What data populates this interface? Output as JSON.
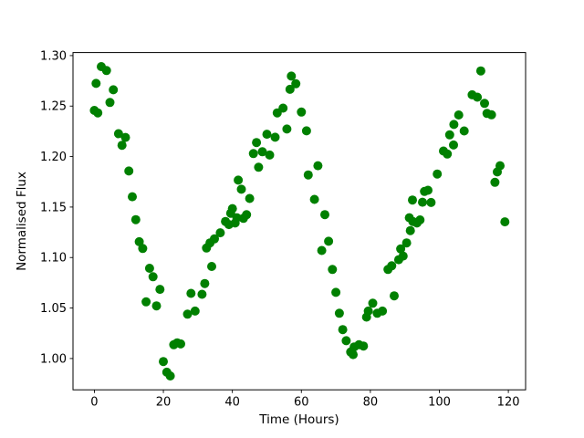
{
  "chart_data": {
    "type": "scatter",
    "title": "",
    "xlabel": "Time (Hours)",
    "ylabel": "Normalised Flux",
    "xlim": [
      -6.2,
      125.0
    ],
    "ylim": [
      0.969,
      1.303
    ],
    "grid": false,
    "legend": null,
    "marker": {
      "shape": "circle",
      "color": "#008000",
      "radius_px": 5
    },
    "x_ticks": {
      "values": [
        0,
        20,
        40,
        60,
        80,
        100,
        120
      ],
      "labels": [
        "0",
        "20",
        "40",
        "60",
        "80",
        "100",
        "120"
      ]
    },
    "y_ticks": {
      "values": [
        1.0,
        1.05,
        1.1,
        1.15,
        1.2,
        1.25,
        1.3
      ],
      "labels": [
        "1.00",
        "1.05",
        "1.10",
        "1.15",
        "1.20",
        "1.25",
        "1.30"
      ]
    },
    "series": [
      {
        "name": "normalised-flux-vs-time",
        "points": [
          [
            0.0,
            1.2457
          ],
          [
            0.5,
            1.2725
          ],
          [
            1.0,
            1.2433
          ],
          [
            2.0,
            1.2891
          ],
          [
            3.5,
            1.2852
          ],
          [
            4.5,
            1.2536
          ],
          [
            5.5,
            1.2661
          ],
          [
            7.0,
            1.2227
          ],
          [
            8.0,
            1.2112
          ],
          [
            9.0,
            1.219
          ],
          [
            10.0,
            1.1857
          ],
          [
            11.0,
            1.1602
          ],
          [
            12.0,
            1.1375
          ],
          [
            13.0,
            1.1157
          ],
          [
            14.0,
            1.109
          ],
          [
            15.0,
            1.0561
          ],
          [
            16.0,
            1.0894
          ],
          [
            17.0,
            1.081
          ],
          [
            18.0,
            1.0521
          ],
          [
            19.0,
            1.0685
          ],
          [
            20.0,
            0.997
          ],
          [
            21.0,
            0.9864
          ],
          [
            22.0,
            0.9827
          ],
          [
            23.0,
            1.0136
          ],
          [
            24.0,
            1.0155
          ],
          [
            25.0,
            1.0145
          ],
          [
            27.0,
            1.0439
          ],
          [
            28.0,
            1.0645
          ],
          [
            29.2,
            1.047
          ],
          [
            31.2,
            1.0636
          ],
          [
            32.0,
            1.0743
          ],
          [
            32.5,
            1.1094
          ],
          [
            33.5,
            1.1145
          ],
          [
            34.0,
            1.0912
          ],
          [
            34.8,
            1.1185
          ],
          [
            36.5,
            1.1245
          ],
          [
            38.0,
            1.1357
          ],
          [
            39.0,
            1.1327
          ],
          [
            39.5,
            1.1439
          ],
          [
            40.0,
            1.1485
          ],
          [
            40.8,
            1.1342
          ],
          [
            41.3,
            1.1394
          ],
          [
            41.7,
            1.1767
          ],
          [
            42.6,
            1.1676
          ],
          [
            43.2,
            1.1388
          ],
          [
            44.1,
            1.1424
          ],
          [
            45.0,
            1.1585
          ],
          [
            46.1,
            1.203
          ],
          [
            47.0,
            1.2139
          ],
          [
            47.6,
            1.1894
          ],
          [
            48.7,
            1.2048
          ],
          [
            50.0,
            1.2221
          ],
          [
            50.8,
            1.2015
          ],
          [
            52.4,
            1.2191
          ],
          [
            53.0,
            1.2433
          ],
          [
            54.7,
            1.248
          ],
          [
            55.8,
            1.2273
          ],
          [
            56.7,
            1.2666
          ],
          [
            57.1,
            1.2797
          ],
          [
            58.4,
            1.2721
          ],
          [
            60.0,
            1.2441
          ],
          [
            61.5,
            1.2255
          ],
          [
            62.0,
            1.1818
          ],
          [
            63.8,
            1.1576
          ],
          [
            64.8,
            1.1909
          ],
          [
            65.9,
            1.107
          ],
          [
            66.8,
            1.1425
          ],
          [
            67.9,
            1.1161
          ],
          [
            69.0,
            1.0882
          ],
          [
            70.0,
            1.0655
          ],
          [
            71.0,
            1.0448
          ],
          [
            72.0,
            1.0286
          ],
          [
            73.0,
            1.0176
          ],
          [
            74.3,
            1.0064
          ],
          [
            75.0,
            1.0039
          ],
          [
            75.3,
            1.0115
          ],
          [
            76.7,
            1.0136
          ],
          [
            78.0,
            1.0124
          ],
          [
            78.9,
            1.041
          ],
          [
            79.4,
            1.047
          ],
          [
            80.7,
            1.0548
          ],
          [
            82.0,
            1.0448
          ],
          [
            83.5,
            1.047
          ],
          [
            85.1,
            1.0882
          ],
          [
            86.2,
            1.0918
          ],
          [
            86.9,
            1.0621
          ],
          [
            88.2,
            1.0979
          ],
          [
            88.8,
            1.1085
          ],
          [
            89.5,
            1.1015
          ],
          [
            90.5,
            1.1145
          ],
          [
            91.3,
            1.1394
          ],
          [
            91.6,
            1.1267
          ],
          [
            92.2,
            1.157
          ],
          [
            92.3,
            1.1357
          ],
          [
            93.5,
            1.1342
          ],
          [
            94.4,
            1.1373
          ],
          [
            95.1,
            1.1548
          ],
          [
            95.7,
            1.1655
          ],
          [
            96.7,
            1.1666
          ],
          [
            97.6,
            1.1545
          ],
          [
            99.4,
            1.1827
          ],
          [
            101.2,
            1.2055
          ],
          [
            102.3,
            1.2025
          ],
          [
            103.0,
            1.2215
          ],
          [
            104.1,
            1.2115
          ],
          [
            104.2,
            1.2318
          ],
          [
            105.6,
            1.2412
          ],
          [
            107.2,
            1.2254
          ],
          [
            109.5,
            1.2612
          ],
          [
            111.0,
            1.2588
          ],
          [
            112.0,
            1.2848
          ],
          [
            113.1,
            1.2527
          ],
          [
            113.8,
            1.2427
          ],
          [
            115.1,
            1.2414
          ],
          [
            116.1,
            1.1745
          ],
          [
            116.8,
            1.1848
          ],
          [
            117.6,
            1.1909
          ],
          [
            119.0,
            1.1354
          ]
        ]
      }
    ]
  }
}
